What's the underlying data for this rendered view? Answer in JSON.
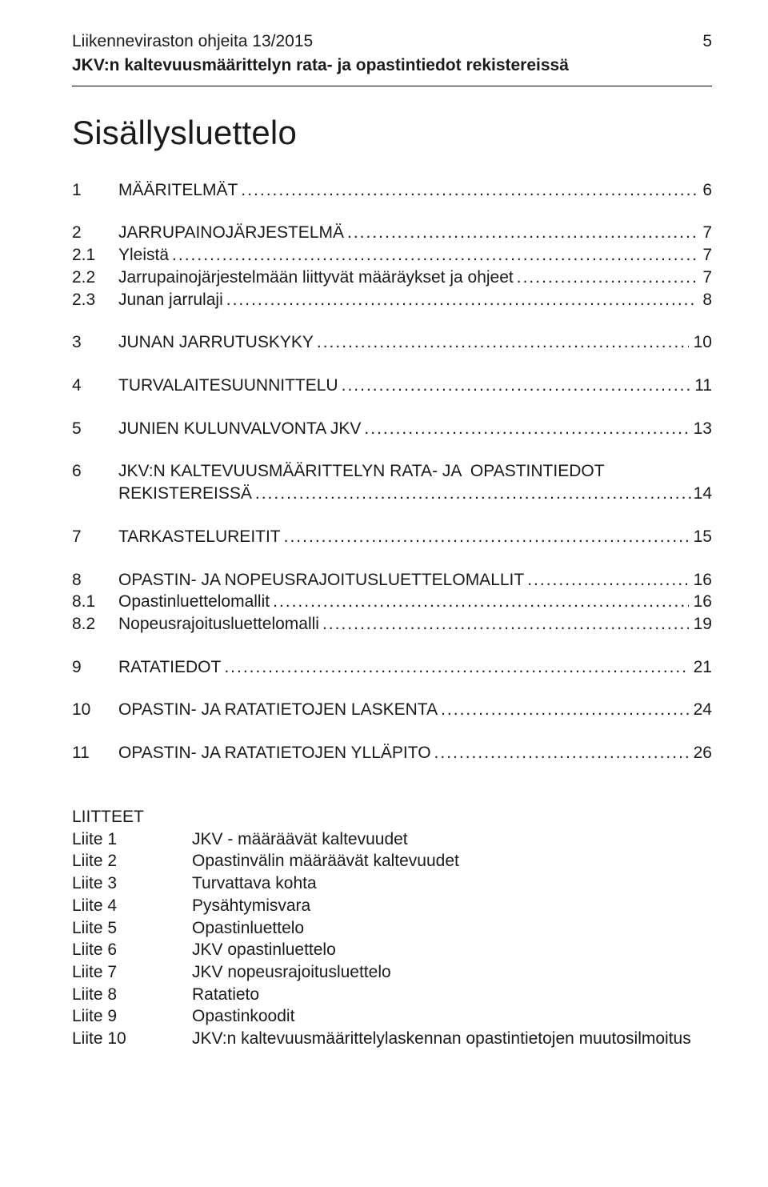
{
  "header": {
    "line1": "Liikenneviraston ohjeita 13/2015",
    "line2": "JKV:n kaltevuusmäärittelyn rata- ja opastintiedot rekistereissä",
    "page_number": "5"
  },
  "title": "Sisällysluettelo",
  "toc": [
    {
      "num": "1",
      "label": "MÄÄRITELMÄT",
      "page": "6",
      "gap_after": "lg"
    },
    {
      "num": "2",
      "label": "JARRUPAINOJÄRJESTELMÄ",
      "page": "7",
      "gap_after": "sm"
    },
    {
      "num": "2.1",
      "label": "Yleistä",
      "page": "7",
      "gap_after": "sm"
    },
    {
      "num": "2.2",
      "label": "Jarrupainojärjestelmään liittyvät määräykset ja ohjeet",
      "page": "7",
      "gap_after": "sm"
    },
    {
      "num": "2.3",
      "label": "Junan jarrulaji",
      "page": "8",
      "gap_after": "lg"
    },
    {
      "num": "3",
      "label": "JUNAN JARRUTUSKYKY",
      "page": "10",
      "gap_after": "lg"
    },
    {
      "num": "4",
      "label": "TURVALAITESUUNNITTELU",
      "page": "11",
      "gap_after": "lg"
    },
    {
      "num": "5",
      "label": "JUNIEN KULUNVALVONTA JKV",
      "page": "13",
      "gap_after": "lg"
    },
    {
      "num": "6",
      "label": "JKV:N KALTEVUUSMÄÄRITTELYN RATA- JA  OPASTINTIEDOT",
      "label2": "REKISTEREISSÄ",
      "page": "14",
      "gap_after": "lg",
      "multiline": true
    },
    {
      "num": "7",
      "label": "TARKASTELUREITIT",
      "page": "15",
      "gap_after": "lg"
    },
    {
      "num": "8",
      "label": "OPASTIN- JA NOPEUSRAJOITUSLUETTELOMALLIT",
      "page": "16",
      "gap_after": "sm"
    },
    {
      "num": "8.1",
      "label": "Opastinluettelomallit",
      "page": "16",
      "gap_after": "sm"
    },
    {
      "num": "8.2",
      "label": "Nopeusrajoitusluettelomalli",
      "page": "19",
      "gap_after": "lg"
    },
    {
      "num": "9",
      "label": "RATATIEDOT",
      "page": "21",
      "gap_after": "lg"
    },
    {
      "num": "10",
      "label": "OPASTIN- JA RATATIETOJEN LASKENTA",
      "page": "24",
      "gap_after": "lg"
    },
    {
      "num": "11",
      "label": "OPASTIN- JA RATATIETOJEN YLLÄPITO",
      "page": "26",
      "gap_after": "lg"
    }
  ],
  "appendices": {
    "heading": "LIITTEET",
    "items": [
      {
        "key": "Liite 1",
        "val": "JKV - määräävät kaltevuudet"
      },
      {
        "key": "Liite 2",
        "val": "Opastinvälin määräävät kaltevuudet"
      },
      {
        "key": "Liite 3",
        "val": "Turvattava kohta"
      },
      {
        "key": "Liite 4",
        "val": "Pysähtymisvara"
      },
      {
        "key": "Liite 5",
        "val": "Opastinluettelo"
      },
      {
        "key": "Liite 6",
        "val": "JKV opastinluettelo"
      },
      {
        "key": "Liite 7",
        "val": "JKV nopeusrajoitusluettelo"
      },
      {
        "key": "Liite 8",
        "val": "Ratatieto"
      },
      {
        "key": "Liite 9",
        "val": "Opastinkoodit"
      },
      {
        "key": "Liite 10",
        "val": "JKV:n kaltevuusmäärittelylaskennan opastintietojen muutosilmoitus"
      }
    ]
  },
  "style": {
    "leader_char": "."
  }
}
